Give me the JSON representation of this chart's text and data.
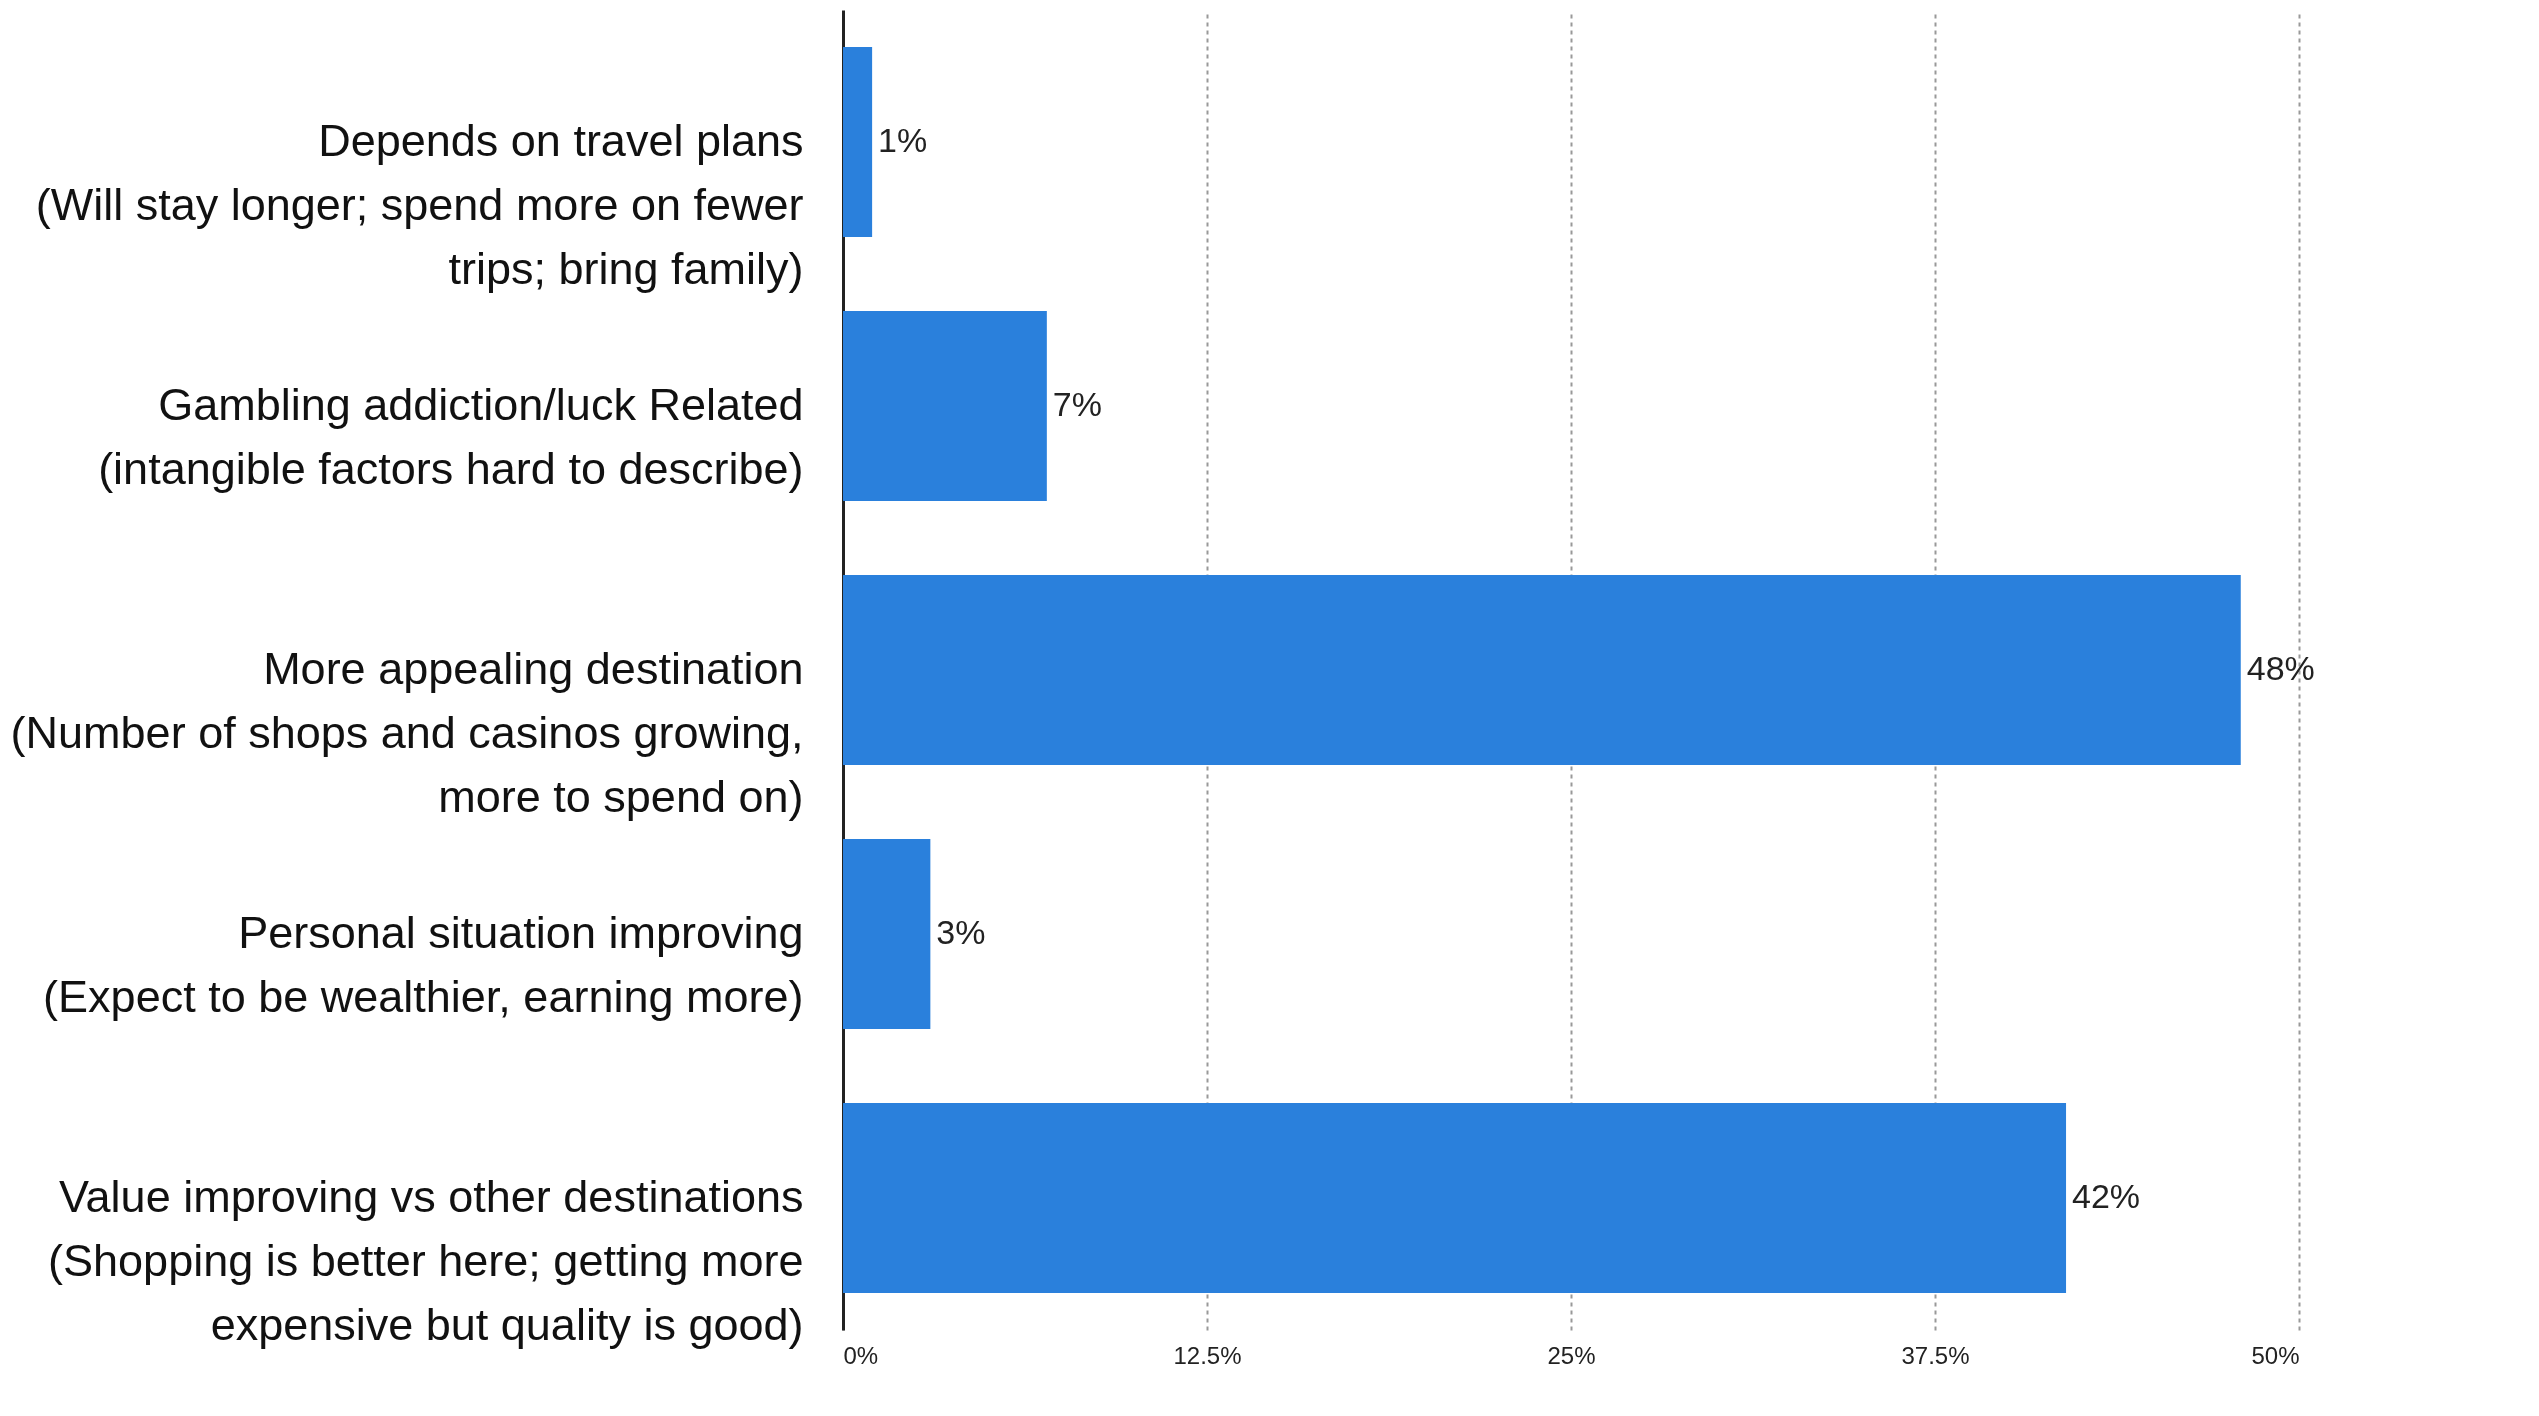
{
  "chart_data": {
    "type": "bar",
    "orientation": "horizontal",
    "categories": [
      "Depends on travel plans\n(Will stay longer; spend more on fewer\ntrips; bring family)",
      "Gambling addiction/luck Related\n(intangible factors hard to describe)",
      "More appealing destination\n(Number of shops and casinos growing,\nmore to spend on)",
      "Personal situation improving\n(Expect to be wealthier, earning more)",
      "Value improving vs other destinations\n(Shopping is better here; getting more\nexpensive but quality is good)"
    ],
    "values": [
      1,
      7,
      48,
      3,
      42
    ],
    "value_labels": [
      "1%",
      "7%",
      "48%",
      "3%",
      "42%"
    ],
    "color": "#2a80dc",
    "xlim": [
      0,
      50
    ],
    "xticks": [
      {
        "value": 0,
        "label": "0%"
      },
      {
        "value": 12.5,
        "label": "12.5%"
      },
      {
        "value": 25,
        "label": "25%"
      },
      {
        "value": 37.5,
        "label": "37.5%"
      },
      {
        "value": 50,
        "label": "50%"
      }
    ],
    "grid": "x"
  }
}
